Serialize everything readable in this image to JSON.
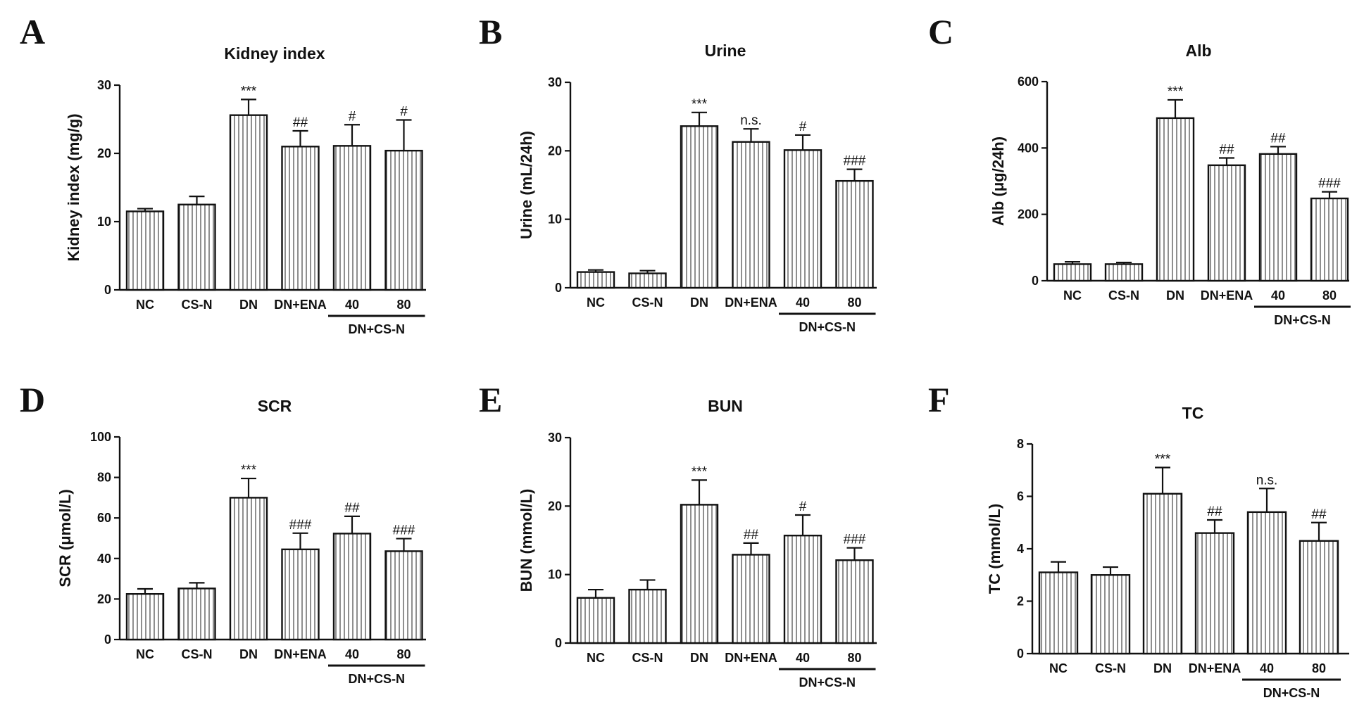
{
  "chart_data": [
    {
      "panel": "A",
      "type": "bar",
      "title": "Kidney index",
      "ylabel": "Kidney index (mg/g)",
      "ylim": [
        0,
        30
      ],
      "yticks": [
        "0",
        "10",
        "20",
        "30"
      ],
      "categories": [
        "NC",
        "CS-N",
        "DN",
        "DN+ENA",
        "40",
        "80"
      ],
      "group_label": "DN+CS-N",
      "values": [
        11.5,
        12.5,
        25.6,
        21.0,
        21.1,
        20.4
      ],
      "errors": [
        0.4,
        1.2,
        2.3,
        2.3,
        3.1,
        4.5
      ],
      "annotations": [
        "",
        "",
        "***",
        "##",
        "#",
        "#"
      ]
    },
    {
      "panel": "B",
      "type": "bar",
      "title": "Urine",
      "ylabel": "Urine (mL/24h)",
      "ylim": [
        0,
        30
      ],
      "yticks": [
        "0",
        "10",
        "20",
        "30"
      ],
      "categories": [
        "NC",
        "CS-N",
        "DN",
        "DN+ENA",
        "40",
        "80"
      ],
      "group_label": "DN+CS-N",
      "values": [
        2.3,
        2.1,
        23.6,
        21.3,
        20.1,
        15.6
      ],
      "errors": [
        0.3,
        0.4,
        2.0,
        1.9,
        2.2,
        1.7
      ],
      "annotations": [
        "",
        "",
        "***",
        "n.s.",
        "#",
        "###"
      ]
    },
    {
      "panel": "C",
      "type": "bar",
      "title": "Alb",
      "ylabel": "Alb (μg/24h)",
      "ylim": [
        0,
        600
      ],
      "yticks": [
        "0",
        "200",
        "400",
        "600"
      ],
      "categories": [
        "NC",
        "CS-N",
        "DN",
        "DN+ENA",
        "40",
        "80"
      ],
      "group_label": "DN+CS-N",
      "values": [
        50,
        50,
        490,
        348,
        382,
        248
      ],
      "errors": [
        7,
        5,
        55,
        22,
        22,
        20
      ],
      "annotations": [
        "",
        "",
        "***",
        "##",
        "##",
        "###"
      ]
    },
    {
      "panel": "D",
      "type": "bar",
      "title": "SCR",
      "ylabel": "SCR (μmol/L)",
      "ylim": [
        0,
        100
      ],
      "yticks": [
        "0",
        "20",
        "40",
        "60",
        "80",
        "100"
      ],
      "categories": [
        "NC",
        "CS-N",
        "DN",
        "DN+ENA",
        "40",
        "80"
      ],
      "group_label": "DN+CS-N",
      "values": [
        22.5,
        25.2,
        70.0,
        44.5,
        52.3,
        43.6
      ],
      "errors": [
        2.5,
        2.8,
        9.5,
        8.0,
        8.5,
        6.2
      ],
      "annotations": [
        "",
        "",
        "***",
        "###",
        "##",
        "###"
      ]
    },
    {
      "panel": "E",
      "type": "bar",
      "title": "BUN",
      "ylabel": "BUN (mmol/L)",
      "ylim": [
        0,
        30
      ],
      "yticks": [
        "0",
        "10",
        "20",
        "30"
      ],
      "categories": [
        "NC",
        "CS-N",
        "DN",
        "DN+ENA",
        "40",
        "80"
      ],
      "group_label": "DN+CS-N",
      "values": [
        6.6,
        7.8,
        20.2,
        12.9,
        15.7,
        12.1
      ],
      "errors": [
        1.2,
        1.4,
        3.6,
        1.7,
        3.0,
        1.8
      ],
      "annotations": [
        "",
        "",
        "***",
        "##",
        "#",
        "###"
      ]
    },
    {
      "panel": "F",
      "type": "bar",
      "title": "TC",
      "ylabel": "TC (mmol/L)",
      "ylim": [
        0,
        8
      ],
      "yticks": [
        "0",
        "2",
        "4",
        "6",
        "8"
      ],
      "categories": [
        "NC",
        "CS-N",
        "DN",
        "DN+ENA",
        "40",
        "80"
      ],
      "group_label": "DN+CS-N",
      "values": [
        3.1,
        3.0,
        6.1,
        4.6,
        5.4,
        4.3
      ],
      "errors": [
        0.4,
        0.3,
        1.0,
        0.5,
        0.9,
        0.7
      ],
      "annotations": [
        "",
        "",
        "***",
        "##",
        "n.s.",
        "##"
      ]
    }
  ]
}
